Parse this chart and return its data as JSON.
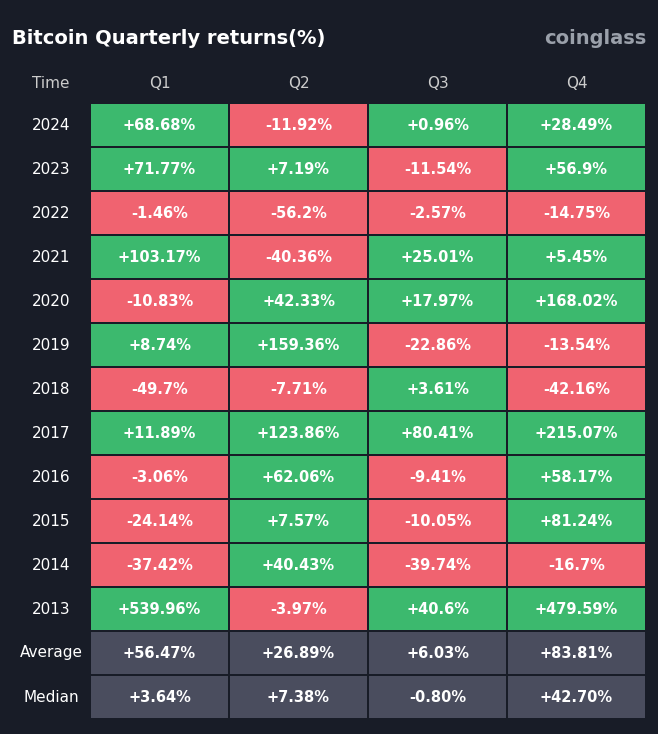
{
  "title": "Bitcoin Quarterly returns(%)",
  "source": "coinglass",
  "bg_color": "#181c27",
  "cell_green": "#3cb96e",
  "cell_red": "#f06370",
  "cell_gray": "#4a4d5e",
  "border_color": "#181c27",
  "columns": [
    "Time",
    "Q1",
    "Q2",
    "Q3",
    "Q4"
  ],
  "rows": [
    {
      "year": "2024",
      "values": [
        "+68.68%",
        "-11.92%",
        "+0.96%",
        "+28.49%"
      ],
      "colors": [
        "green",
        "red",
        "green",
        "green"
      ]
    },
    {
      "year": "2023",
      "values": [
        "+71.77%",
        "+7.19%",
        "-11.54%",
        "+56.9%"
      ],
      "colors": [
        "green",
        "green",
        "red",
        "green"
      ]
    },
    {
      "year": "2022",
      "values": [
        "-1.46%",
        "-56.2%",
        "-2.57%",
        "-14.75%"
      ],
      "colors": [
        "red",
        "red",
        "red",
        "red"
      ]
    },
    {
      "year": "2021",
      "values": [
        "+103.17%",
        "-40.36%",
        "+25.01%",
        "+5.45%"
      ],
      "colors": [
        "green",
        "red",
        "green",
        "green"
      ]
    },
    {
      "year": "2020",
      "values": [
        "-10.83%",
        "+42.33%",
        "+17.97%",
        "+168.02%"
      ],
      "colors": [
        "red",
        "green",
        "green",
        "green"
      ]
    },
    {
      "year": "2019",
      "values": [
        "+8.74%",
        "+159.36%",
        "-22.86%",
        "-13.54%"
      ],
      "colors": [
        "green",
        "green",
        "red",
        "red"
      ]
    },
    {
      "year": "2018",
      "values": [
        "-49.7%",
        "-7.71%",
        "+3.61%",
        "-42.16%"
      ],
      "colors": [
        "red",
        "red",
        "green",
        "red"
      ]
    },
    {
      "year": "2017",
      "values": [
        "+11.89%",
        "+123.86%",
        "+80.41%",
        "+215.07%"
      ],
      "colors": [
        "green",
        "green",
        "green",
        "green"
      ]
    },
    {
      "year": "2016",
      "values": [
        "-3.06%",
        "+62.06%",
        "-9.41%",
        "+58.17%"
      ],
      "colors": [
        "red",
        "green",
        "red",
        "green"
      ]
    },
    {
      "year": "2015",
      "values": [
        "-24.14%",
        "+7.57%",
        "-10.05%",
        "+81.24%"
      ],
      "colors": [
        "red",
        "green",
        "red",
        "green"
      ]
    },
    {
      "year": "2014",
      "values": [
        "-37.42%",
        "+40.43%",
        "-39.74%",
        "-16.7%"
      ],
      "colors": [
        "red",
        "green",
        "red",
        "red"
      ]
    },
    {
      "year": "2013",
      "values": [
        "+539.96%",
        "-3.97%",
        "+40.6%",
        "+479.59%"
      ],
      "colors": [
        "green",
        "red",
        "green",
        "green"
      ]
    }
  ],
  "average": [
    "+56.47%",
    "+26.89%",
    "+6.03%",
    "+83.81%"
  ],
  "median": [
    "+3.64%",
    "+7.38%",
    "-0.80%",
    "+42.70%"
  ]
}
